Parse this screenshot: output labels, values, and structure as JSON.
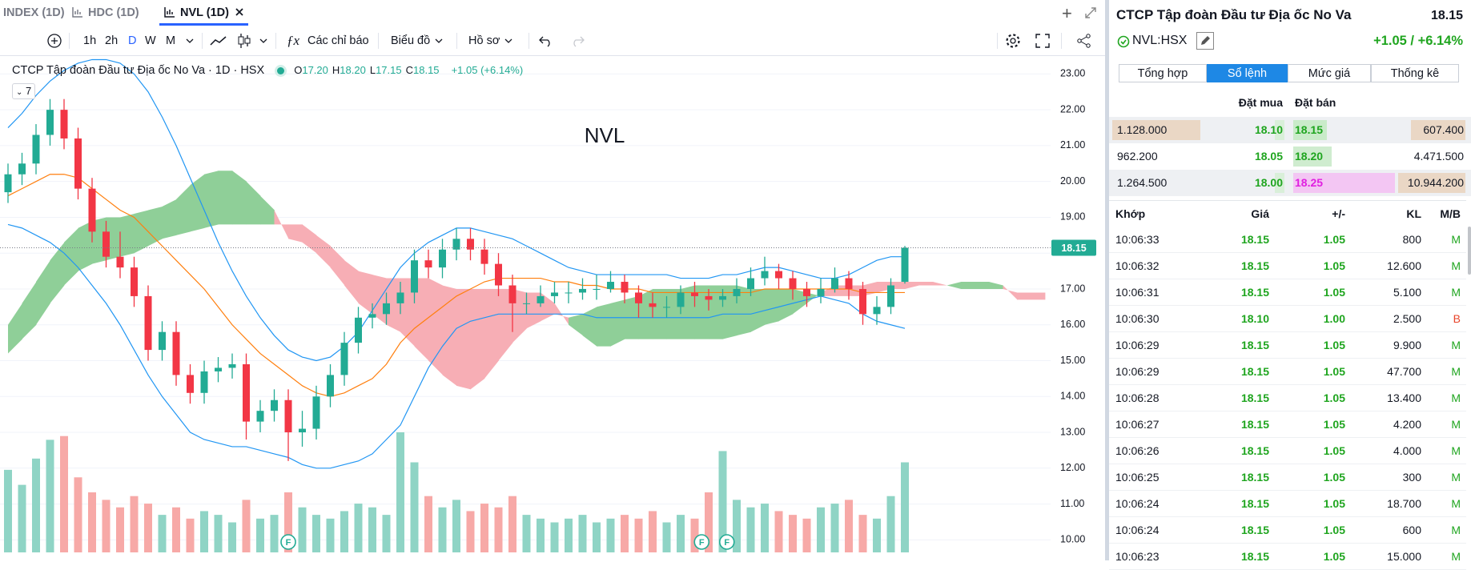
{
  "tabs": {
    "items": [
      "INDEX (1D)",
      "HDC (1D)",
      "NVL (1D)"
    ],
    "active": 2
  },
  "toolbar": {
    "intervals": [
      "1h",
      "2h",
      "D",
      "W",
      "M"
    ],
    "active_interval": 2,
    "indicators": "Các chỉ báo",
    "chart_type": "Biểu đồ",
    "profile": "Hồ sơ"
  },
  "chart_data": {
    "type": "candlestick",
    "legend_title": "CTCP Tập đoàn Đầu tư Địa ốc No Va · 1D · HSX",
    "ohlc": [
      [
        "O",
        "17.20"
      ],
      [
        "H",
        "18.20"
      ],
      [
        "L",
        "17.15"
      ],
      [
        "C",
        "18.15"
      ]
    ],
    "change": "+1.05 (+6.14%)",
    "indicator_count": 7,
    "watermark": "NVL",
    "ylim": [
      9.65,
      23.5
    ],
    "yticks": [
      {
        "value": 10,
        "label": "10.00"
      },
      {
        "value": 11,
        "label": "11.00"
      },
      {
        "value": 12,
        "label": "12.00"
      },
      {
        "value": 13,
        "label": "13.00"
      },
      {
        "value": 14,
        "label": "14.00"
      },
      {
        "value": 15,
        "label": "15.00"
      },
      {
        "value": 16,
        "label": "16.00"
      },
      {
        "value": 17,
        "label": "17.00"
      },
      {
        "value": 18,
        "label": "18.00"
      },
      {
        "value": 19,
        "label": "19.00"
      },
      {
        "value": 20,
        "label": "20.00"
      },
      {
        "value": 21,
        "label": "21.00"
      },
      {
        "value": 22,
        "label": "22.00"
      },
      {
        "value": 23,
        "label": "23.00"
      }
    ],
    "grid": true,
    "last_price": 18.15,
    "up_color": "#22ab94",
    "down_color": "#f23645",
    "volume_up_color": "#8fd4c5",
    "volume_down_color": "#f7a9a7",
    "candles": {
      "open": [
        19.7,
        20.2,
        20.5,
        21.3,
        22.0,
        21.2,
        19.8,
        18.6,
        17.9,
        17.6,
        16.8,
        15.3,
        15.8,
        14.6,
        14.1,
        14.7,
        14.8,
        14.9,
        13.3,
        13.6,
        13.9,
        13.0,
        13.1,
        14.0,
        14.6,
        15.5,
        16.2,
        16.3,
        16.6,
        16.9,
        17.8,
        17.6,
        18.1,
        18.4,
        18.1,
        17.7,
        17.1,
        16.6,
        16.6,
        16.8,
        16.9,
        16.9,
        17.0,
        17.0,
        17.2,
        16.9,
        16.6,
        16.5,
        16.5,
        16.9,
        16.8,
        16.7,
        16.8,
        17.0,
        17.3,
        17.5,
        17.3,
        17.0,
        16.8,
        17.0,
        17.3,
        17.0,
        16.3,
        16.5,
        17.2
      ],
      "high": [
        20.5,
        20.8,
        21.6,
        22.3,
        22.3,
        21.5,
        20.1,
        18.9,
        18.6,
        17.9,
        17.1,
        16.1,
        16.1,
        14.9,
        15.0,
        15.1,
        15.2,
        15.2,
        13.9,
        14.2,
        14.2,
        13.6,
        14.3,
        14.9,
        15.8,
        16.5,
        16.6,
        16.9,
        17.2,
        18.1,
        18.1,
        18.4,
        18.7,
        18.7,
        18.4,
        18.0,
        17.4,
        16.9,
        17.1,
        17.2,
        17.2,
        17.3,
        17.4,
        17.5,
        17.4,
        17.1,
        16.9,
        16.8,
        17.1,
        17.2,
        17.0,
        17.0,
        17.3,
        17.6,
        17.9,
        17.7,
        17.5,
        17.2,
        17.3,
        17.6,
        17.5,
        17.2,
        16.8,
        17.3,
        18.2
      ],
      "low": [
        19.4,
        19.9,
        20.2,
        21.0,
        20.9,
        19.5,
        18.3,
        17.6,
        17.3,
        16.5,
        15.0,
        15.0,
        14.3,
        13.8,
        13.8,
        14.4,
        14.5,
        12.8,
        13.0,
        13.3,
        12.2,
        12.6,
        12.8,
        13.7,
        14.3,
        15.2,
        15.9,
        16.0,
        16.3,
        16.6,
        17.3,
        17.3,
        17.8,
        17.8,
        17.4,
        16.8,
        15.8,
        16.3,
        16.5,
        16.6,
        16.6,
        16.7,
        16.7,
        16.9,
        16.6,
        16.2,
        16.2,
        16.2,
        16.3,
        16.5,
        16.4,
        16.5,
        16.6,
        16.8,
        17.1,
        17.0,
        16.7,
        16.5,
        16.6,
        16.9,
        16.7,
        16.0,
        16.0,
        16.3,
        17.15
      ],
      "close": [
        20.2,
        20.5,
        21.3,
        22.0,
        21.2,
        19.8,
        18.6,
        17.9,
        17.6,
        16.8,
        15.3,
        15.8,
        14.6,
        14.1,
        14.7,
        14.8,
        14.9,
        13.3,
        13.6,
        13.9,
        13.0,
        13.1,
        14.0,
        14.6,
        15.5,
        16.2,
        16.3,
        16.6,
        16.9,
        17.8,
        17.6,
        18.1,
        18.4,
        18.1,
        17.7,
        17.1,
        16.6,
        16.6,
        16.8,
        16.9,
        16.9,
        17.0,
        17.0,
        17.2,
        16.9,
        16.6,
        16.5,
        16.5,
        16.9,
        16.8,
        16.7,
        16.8,
        17.0,
        17.3,
        17.5,
        17.3,
        17.0,
        16.8,
        17.0,
        17.3,
        17.0,
        16.3,
        16.5,
        17.1,
        18.15
      ],
      "volume": [
        22,
        18,
        25,
        30,
        31,
        20,
        16,
        14,
        12,
        15,
        13,
        10,
        12,
        9,
        11,
        10,
        8,
        14,
        9,
        10,
        16,
        12,
        10,
        9,
        11,
        13,
        12,
        10,
        32,
        24,
        15,
        12,
        14,
        11,
        13,
        12,
        15,
        10,
        9,
        8,
        9,
        10,
        8,
        9,
        10,
        9,
        11,
        8,
        10,
        9,
        16,
        27,
        14,
        12,
        13,
        11,
        10,
        9,
        12,
        13,
        14,
        10,
        9,
        15,
        24
      ]
    },
    "lines": [
      {
        "color": "#2196f3",
        "values": [
          21.5,
          21.9,
          22.4,
          22.8,
          23.1,
          23.3,
          23.4,
          23.4,
          23.3,
          23.0,
          22.5,
          21.8,
          21.0,
          20.1,
          19.2,
          18.3,
          17.5,
          16.8,
          16.2,
          15.7,
          15.3,
          15.1,
          15.0,
          15.1,
          15.4,
          15.8,
          16.4,
          17.0,
          17.6,
          18.0,
          18.3,
          18.5,
          18.7,
          18.7,
          18.6,
          18.5,
          18.4,
          18.2,
          18.0,
          17.8,
          17.6,
          17.5,
          17.4,
          17.4,
          17.4,
          17.4,
          17.4,
          17.4,
          17.3,
          17.3,
          17.3,
          17.4,
          17.4,
          17.5,
          17.6,
          17.6,
          17.5,
          17.4,
          17.3,
          17.3,
          17.4,
          17.6,
          17.8,
          17.9,
          17.9
        ]
      },
      {
        "color": "#2196f3",
        "values": [
          18.8,
          18.7,
          18.5,
          18.3,
          18.0,
          17.6,
          17.1,
          16.6,
          16.0,
          15.3,
          14.6,
          14.0,
          13.5,
          13.0,
          12.8,
          12.7,
          12.6,
          12.6,
          12.5,
          12.4,
          12.3,
          12.1,
          12.0,
          12.0,
          12.1,
          12.2,
          12.4,
          12.8,
          13.2,
          14.0,
          14.8,
          15.4,
          15.9,
          16.1,
          16.2,
          16.3,
          16.3,
          16.3,
          16.3,
          16.3,
          16.3,
          16.3,
          16.2,
          16.2,
          16.2,
          16.2,
          16.2,
          16.2,
          16.2,
          16.2,
          16.2,
          16.3,
          16.3,
          16.3,
          16.4,
          16.5,
          16.6,
          16.7,
          16.8,
          16.7,
          16.6,
          16.3,
          16.1,
          16.0,
          15.9
        ]
      },
      {
        "color": "#ff7f0e",
        "values": [
          19.6,
          19.8,
          20.0,
          20.2,
          20.2,
          20.1,
          19.8,
          19.5,
          19.2,
          19.0,
          18.6,
          18.2,
          17.8,
          17.4,
          17.0,
          16.5,
          16.0,
          15.6,
          15.2,
          14.9,
          14.6,
          14.3,
          14.1,
          14.0,
          14.1,
          14.3,
          14.5,
          14.9,
          15.5,
          15.9,
          16.2,
          16.5,
          16.8,
          17.0,
          17.2,
          17.3,
          17.3,
          17.3,
          17.3,
          17.2,
          17.2,
          17.1,
          17.1,
          17.0,
          17.0,
          17.0,
          16.9,
          16.9,
          16.9,
          16.9,
          16.9,
          16.9,
          16.9,
          16.9,
          17.0,
          17.0,
          17.0,
          17.0,
          17.0,
          17.0,
          17.0,
          16.9,
          16.9,
          16.9,
          16.9
        ]
      }
    ],
    "cloud": {
      "up_color": "#8fcf98",
      "down_color": "#f7aeb5",
      "span_a": [
        16.0,
        16.6,
        17.2,
        17.8,
        18.3,
        18.7,
        18.9,
        19.0,
        19.0,
        19.1,
        19.2,
        19.3,
        19.5,
        19.9,
        20.2,
        20.3,
        20.3,
        20.0,
        19.6,
        19.2,
        18.4,
        18.3,
        18.0,
        17.6,
        17.1,
        16.6,
        16.3,
        16.0,
        15.8,
        15.4,
        15.0,
        14.6,
        14.3,
        14.2,
        14.5,
        15.0,
        15.5,
        15.9,
        16.1,
        16.3,
        16.2,
        16.3,
        16.5,
        16.6,
        16.7,
        16.8,
        17.0,
        17.0,
        17.0,
        17.1,
        17.1,
        17.1,
        17.1,
        17.0,
        17.0,
        17.0,
        17.0,
        16.9,
        16.8,
        16.8,
        16.8,
        16.8,
        16.9,
        17.0,
        17.0,
        17.1,
        17.1,
        17.1,
        17.2,
        17.2,
        17.2,
        17.1,
        16.7,
        16.7,
        16.7
      ],
      "span_b": [
        15.2,
        15.6,
        16.0,
        16.6,
        17.1,
        17.5,
        17.7,
        17.8,
        17.9,
        18.0,
        18.2,
        18.4,
        18.5,
        18.6,
        18.7,
        18.8,
        18.8,
        18.8,
        18.8,
        18.8,
        18.8,
        18.8,
        18.5,
        18.2,
        17.8,
        17.5,
        17.4,
        17.3,
        17.3,
        17.3,
        17.3,
        17.1,
        17.0,
        17.0,
        17.0,
        17.0,
        17.0,
        16.9,
        16.9,
        16.6,
        16.0,
        15.7,
        15.4,
        15.4,
        15.6,
        15.6,
        15.6,
        15.6,
        15.6,
        15.6,
        15.6,
        15.6,
        15.7,
        15.8,
        16.0,
        16.1,
        16.3,
        16.6,
        16.9,
        17.1,
        17.1,
        17.1,
        17.2,
        17.2,
        17.2,
        17.2,
        17.2,
        17.1,
        17.0,
        17.0,
        17.0,
        17.0,
        16.9,
        16.9,
        16.9
      ]
    },
    "events": [
      {
        "label": "F",
        "at": 20
      },
      {
        "label": "F",
        "at": 49.5
      },
      {
        "label": "F",
        "at": 51.3
      }
    ]
  },
  "side_panel": {
    "title": "CTCP Tập đoàn Đầu tư Địa ốc No Va",
    "price": "18.15",
    "symbol": "NVL:HSX",
    "change": "+1.05 / +6.14%",
    "tabs": [
      "Tổng hợp",
      "Sổ lệnh",
      "Mức giá",
      "Thống kê"
    ],
    "active_tab": 1,
    "book_header": [
      "Đặt mua",
      "Đặt bán"
    ],
    "book": [
      [
        "1.128.000",
        "18.10",
        "18.15",
        "607.400"
      ],
      [
        "962.200",
        "18.05",
        "18.20",
        "4.471.500"
      ],
      [
        "1.264.500",
        "18.00",
        "18.25",
        "10.944.200"
      ]
    ],
    "trades_header": [
      "Khớp",
      "Giá",
      "+/-",
      "KL",
      "M/B"
    ],
    "side_colors": {
      "M": "#1fa51f",
      "B": "#e8442a"
    },
    "trades": [
      [
        "10:06:33",
        "18.15",
        "1.05",
        "800",
        "M"
      ],
      [
        "10:06:32",
        "18.15",
        "1.05",
        "12.600",
        "M"
      ],
      [
        "10:06:31",
        "18.15",
        "1.05",
        "5.100",
        "M"
      ],
      [
        "10:06:30",
        "18.10",
        "1.00",
        "2.500",
        "B"
      ],
      [
        "10:06:29",
        "18.15",
        "1.05",
        "9.900",
        "M"
      ],
      [
        "10:06:29",
        "18.15",
        "1.05",
        "47.700",
        "M"
      ],
      [
        "10:06:28",
        "18.15",
        "1.05",
        "13.400",
        "M"
      ],
      [
        "10:06:27",
        "18.15",
        "1.05",
        "4.200",
        "M"
      ],
      [
        "10:06:26",
        "18.15",
        "1.05",
        "4.000",
        "M"
      ],
      [
        "10:06:25",
        "18.15",
        "1.05",
        "300",
        "M"
      ],
      [
        "10:06:24",
        "18.15",
        "1.05",
        "18.700",
        "M"
      ],
      [
        "10:06:24",
        "18.15",
        "1.05",
        "600",
        "M"
      ],
      [
        "10:06:23",
        "18.15",
        "1.05",
        "15.000",
        "M"
      ]
    ]
  }
}
